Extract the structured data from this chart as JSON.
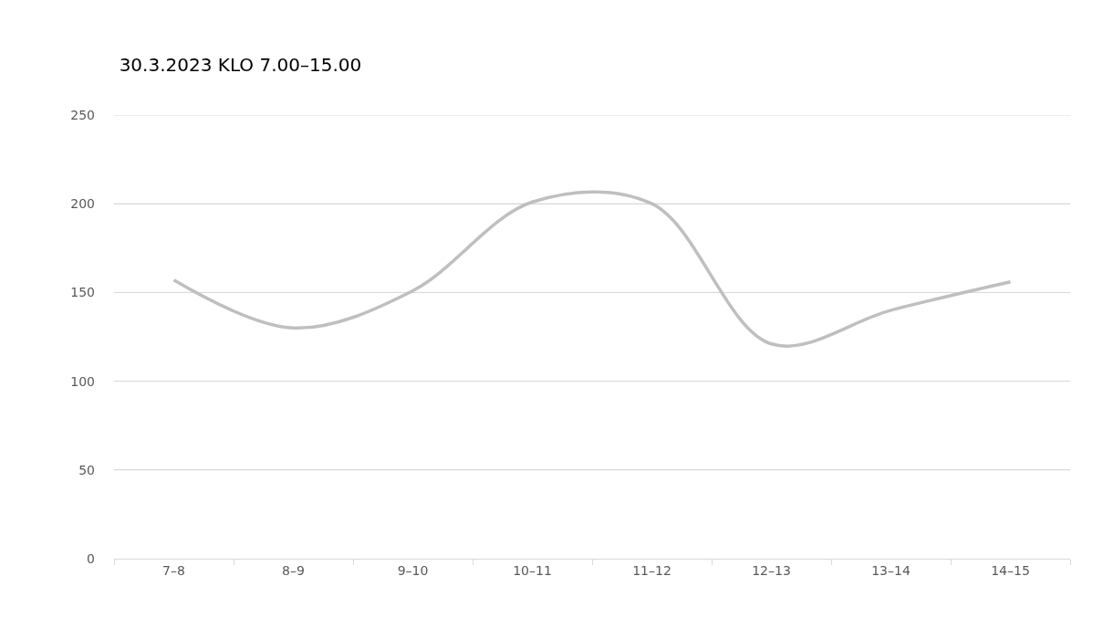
{
  "chart_data": {
    "type": "line",
    "title": "30.3.2023 KLO 7.00–15.00",
    "categories": [
      "7–8",
      "8–9",
      "9–10",
      "10–11",
      "11–12",
      "12–13",
      "13–14",
      "14–15"
    ],
    "series": [
      {
        "color": "#bfbfbf",
        "values": [
          157,
          130,
          151,
          201,
          200,
          121,
          140,
          156
        ]
      }
    ],
    "ylim": [
      0,
      250
    ],
    "yticks": [
      0,
      50,
      100,
      150,
      200,
      250
    ],
    "grid": "y",
    "marker": "none",
    "line_style": "solid"
  }
}
